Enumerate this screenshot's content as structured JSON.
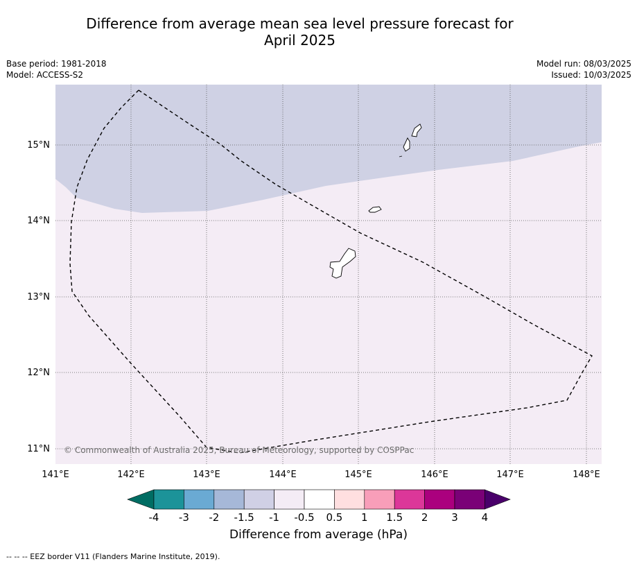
{
  "title_line1": "Difference from average mean sea level pressure forecast for",
  "title_line2": "April 2025",
  "meta": {
    "base_period": "Base period: 1981-2018",
    "model": "Model: ACCESS-S2",
    "model_run": "Model run: 08/03/2025",
    "issued": "Issued: 10/03/2025"
  },
  "map": {
    "lon_labels": [
      "141°E",
      "142°E",
      "143°E",
      "144°E",
      "145°E",
      "146°E",
      "147°E",
      "148°E"
    ],
    "lat_labels": [
      "15°N",
      "14°N",
      "13°N",
      "12°N",
      "11°N"
    ],
    "lon_range": [
      141,
      148.2
    ],
    "lat_range": [
      10.8,
      15.8
    ],
    "copyright": "© Commonwealth of Australia 2025, Bureau of Meteorology, supported by COSPPac",
    "colors": {
      "anomaly_minus_1_to_minus_1_5": "#cfd1e4",
      "anomaly_minus_0_5_to_minus_1": "#f4ecf5"
    }
  },
  "colorbar": {
    "labels": [
      "-4",
      "-3",
      "-2",
      "-1.5",
      "-1",
      "-0.5",
      "0.5",
      "1",
      "1.5",
      "2",
      "3",
      "4"
    ],
    "colors": [
      "#006d63",
      "#1c9399",
      "#6aaad3",
      "#a6b8d8",
      "#d0d0e5",
      "#f4ecf5",
      "#ffffff",
      "#ffdfe0",
      "#f89eb9",
      "#dc3799",
      "#ab007e",
      "#7a0177",
      "#49006a"
    ],
    "title": "Difference from average (hPa)"
  },
  "footnote": "--  --  -- EEZ border V11 (Flanders Marine Institute, 2019)."
}
